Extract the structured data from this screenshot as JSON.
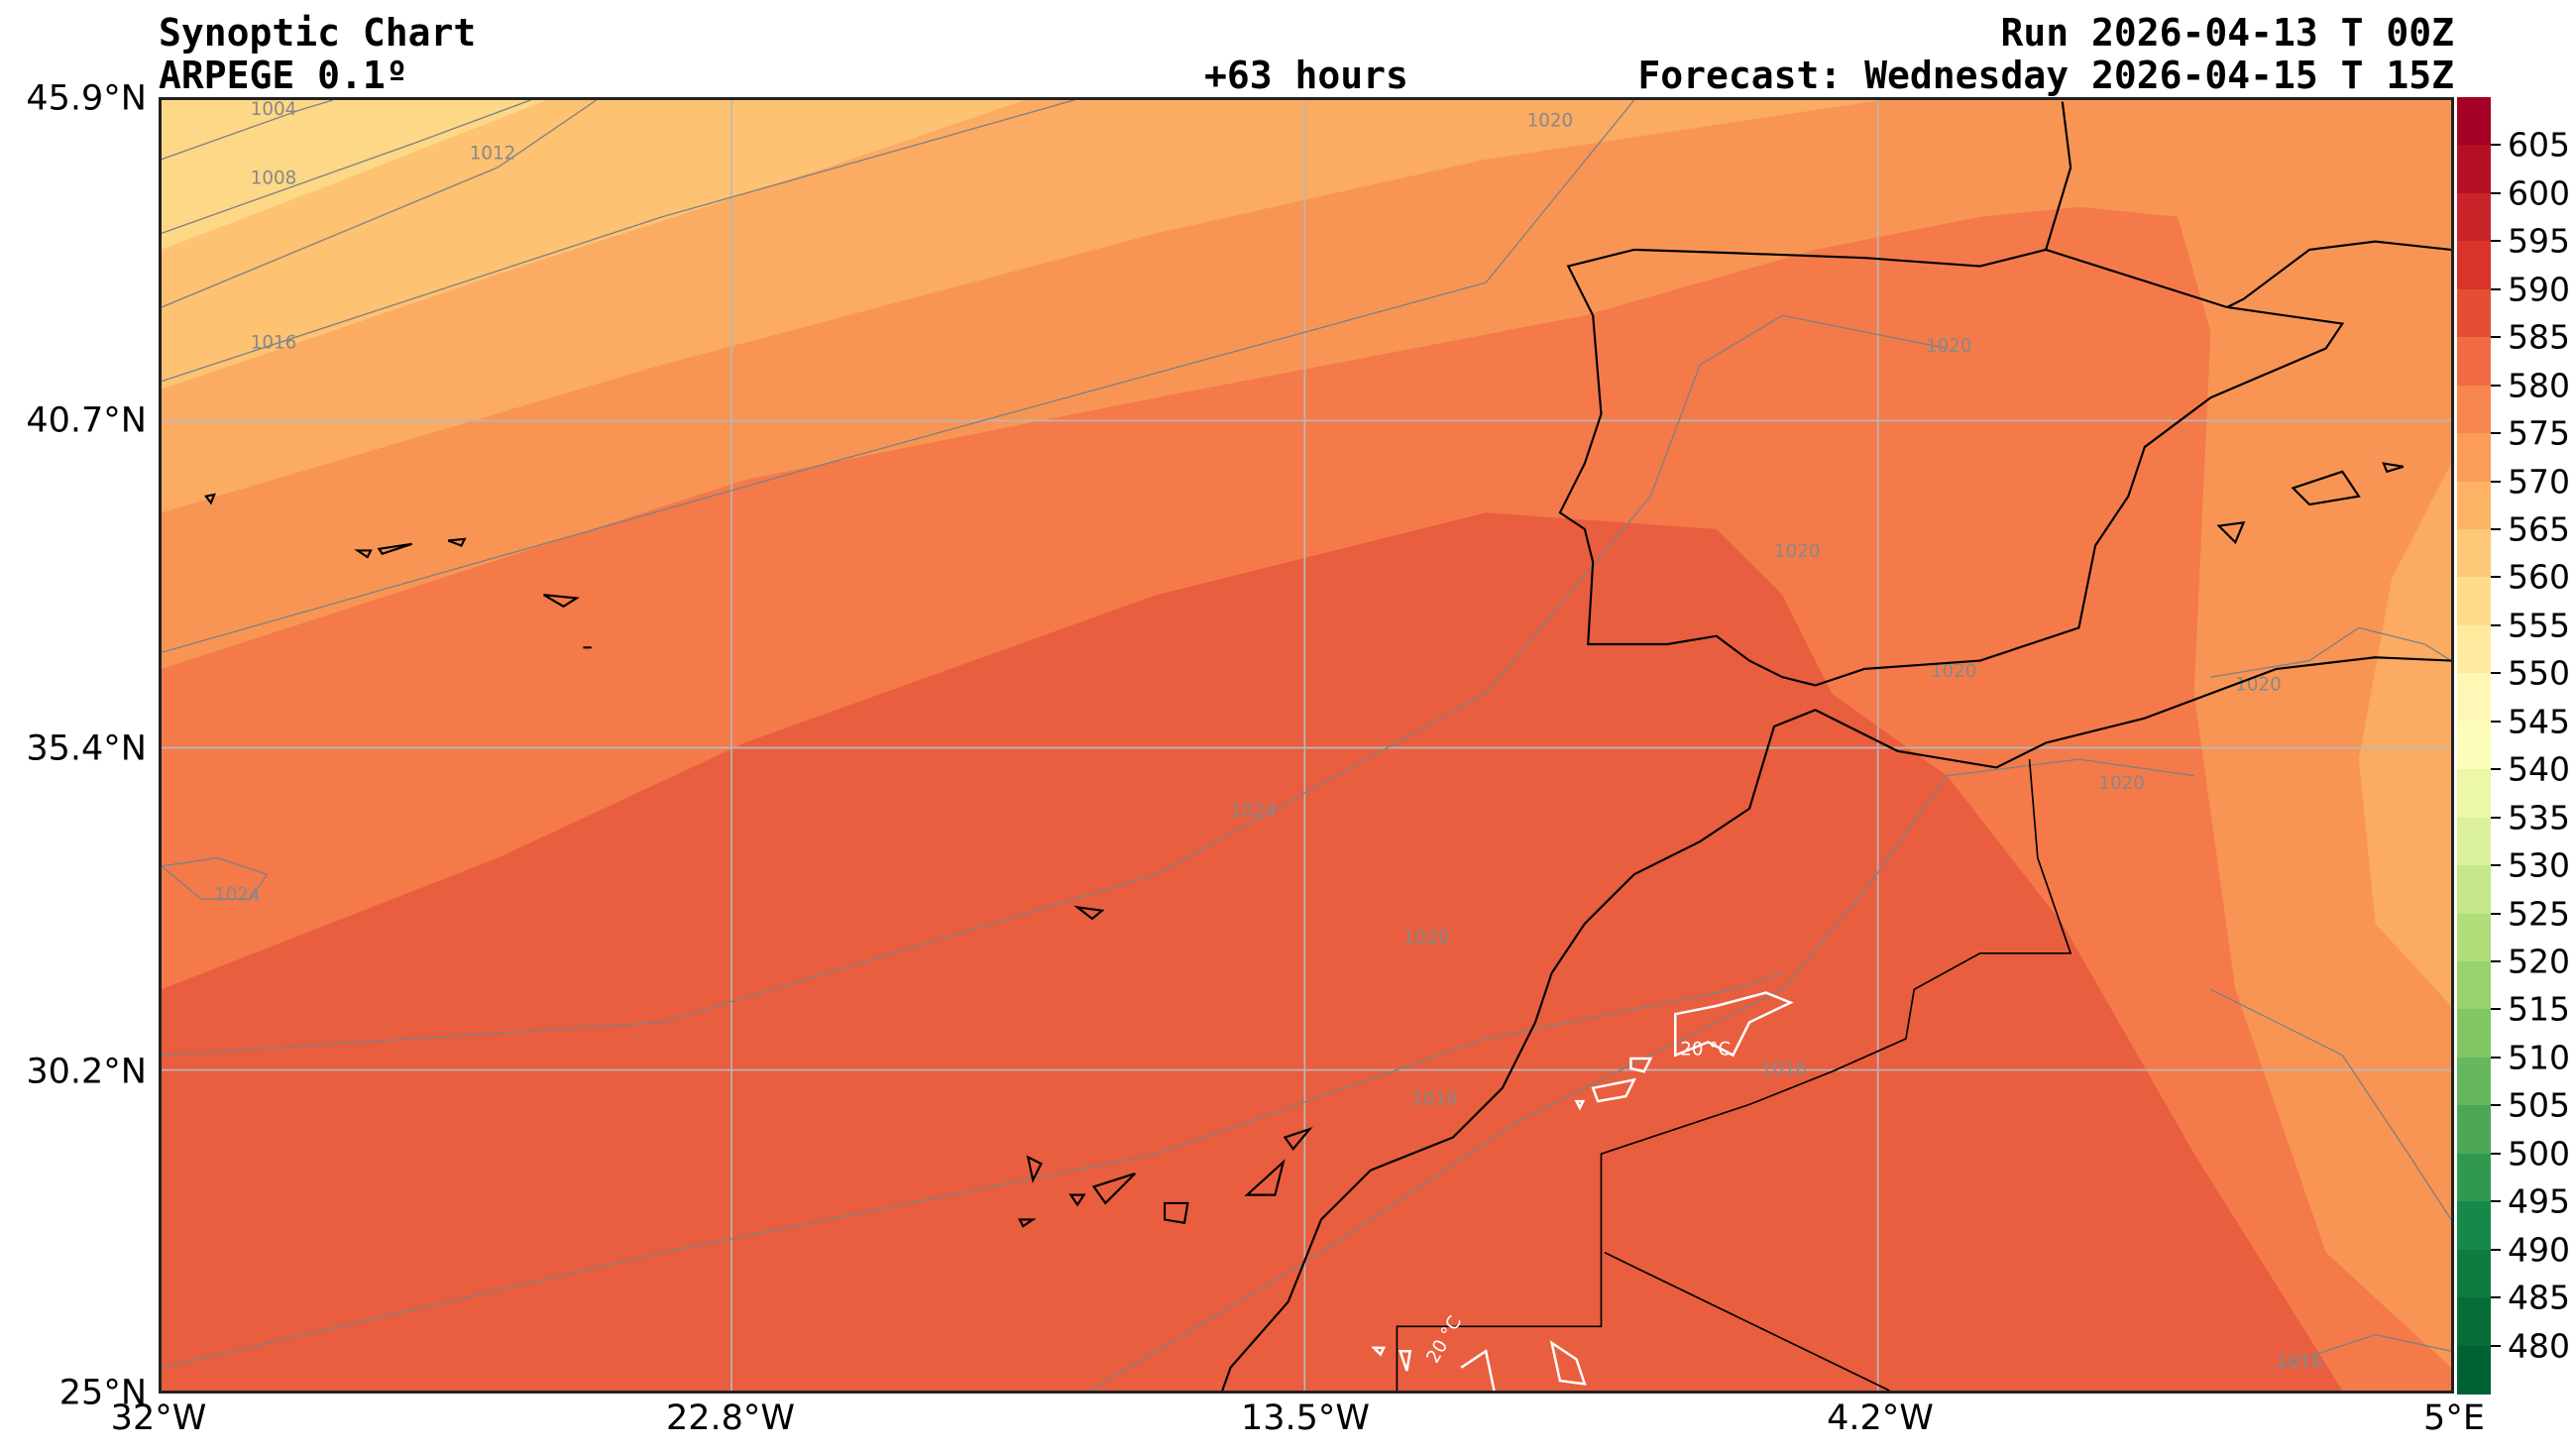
{
  "header": {
    "title": "Synoptic Chart",
    "model": "ARPEGE 0.1º",
    "lead_time": "+63 hours",
    "run": "Run 2026-04-13 T 00Z",
    "forecast": "Forecast: Wednesday 2026-04-15 T 15Z"
  },
  "axes": {
    "lat_labels": [
      "45.9°N",
      "40.7°N",
      "35.4°N",
      "30.2°N",
      "25°N"
    ],
    "lon_labels": [
      "32°W",
      "22.8°W",
      "13.5°W",
      "4.2°W",
      "5°E"
    ]
  },
  "isobar_labels": [
    "1004",
    "1008",
    "1012",
    "1016",
    "1020",
    "1020",
    "1020",
    "1020",
    "1020",
    "1024",
    "1024",
    "1020",
    "1016",
    "1016",
    "1020",
    "1016"
  ],
  "temperature_labels": [
    "20 °C",
    "20 °C"
  ],
  "colorbar": {
    "ticks": [
      "605",
      "600",
      "595",
      "590",
      "585",
      "580",
      "575",
      "570",
      "565",
      "560",
      "555",
      "550",
      "545",
      "540",
      "535",
      "530",
      "525",
      "520",
      "515",
      "510",
      "505",
      "500",
      "495",
      "490",
      "485",
      "480"
    ],
    "colors": [
      "#a50026",
      "#b50f26",
      "#c9242a",
      "#d93429",
      "#e54e35",
      "#f06a43",
      "#f7854e",
      "#fb9c59",
      "#fdb365",
      "#fdc878",
      "#fedc8a",
      "#feeb9f",
      "#fff7b6",
      "#fbfdb9",
      "#ecf7a8",
      "#daf09a",
      "#c5e789",
      "#b0dd78",
      "#98d26d",
      "#80c664",
      "#66b85e",
      "#4ca856",
      "#2f9a4f",
      "#16894a",
      "#0e7b41",
      "#066d39",
      "#006234"
    ]
  }
}
